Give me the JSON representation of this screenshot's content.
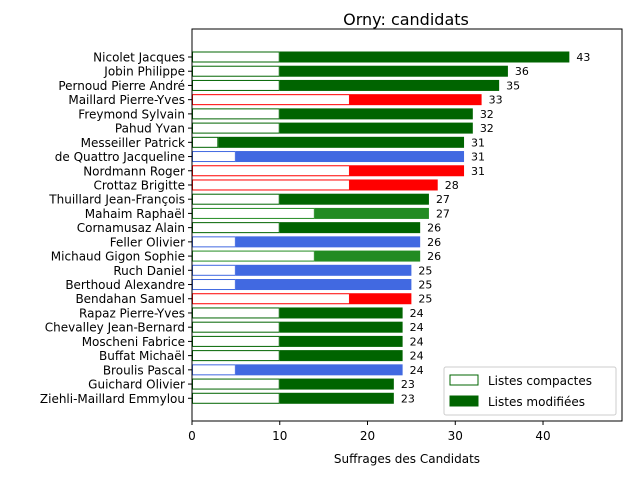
{
  "chart_data": {
    "type": "bar",
    "orientation": "horizontal",
    "stacked": true,
    "title": "Orny: candidats",
    "xlabel": "Suffrages des Candidats",
    "ylabel": "",
    "xlim": [
      0,
      49
    ],
    "xticks": [
      0,
      10,
      20,
      30,
      40
    ],
    "grid": false,
    "legend": {
      "placement": "bottom-right",
      "entries": [
        {
          "label": "Listes compactes",
          "style": "outline",
          "color": "#006400"
        },
        {
          "label": "Listes modifiées",
          "style": "filled",
          "color": "#006400"
        }
      ]
    },
    "colors": {
      "dark_green": "#006400",
      "red": "#ff0000",
      "blue": "#4169e1",
      "green": "#228b22"
    },
    "candidates": [
      {
        "name": "Nicolet Jacques",
        "compactes": 10,
        "total": 43,
        "color": "#006400"
      },
      {
        "name": "Jobin Philippe",
        "compactes": 10,
        "total": 36,
        "color": "#006400"
      },
      {
        "name": "Pernoud Pierre André",
        "compactes": 10,
        "total": 35,
        "color": "#006400"
      },
      {
        "name": "Maillard Pierre-Yves",
        "compactes": 18,
        "total": 33,
        "color": "#ff0000"
      },
      {
        "name": "Freymond Sylvain",
        "compactes": 10,
        "total": 32,
        "color": "#006400"
      },
      {
        "name": "Pahud Yvan",
        "compactes": 10,
        "total": 32,
        "color": "#006400"
      },
      {
        "name": "Messeiller Patrick",
        "compactes": 3,
        "total": 31,
        "color": "#006400"
      },
      {
        "name": "de Quattro Jacqueline",
        "compactes": 5,
        "total": 31,
        "color": "#4169e1"
      },
      {
        "name": "Nordmann Roger",
        "compactes": 18,
        "total": 31,
        "color": "#ff0000"
      },
      {
        "name": "Crottaz Brigitte",
        "compactes": 18,
        "total": 28,
        "color": "#ff0000"
      },
      {
        "name": "Thuillard Jean-François",
        "compactes": 10,
        "total": 27,
        "color": "#006400"
      },
      {
        "name": "Mahaim Raphaël",
        "compactes": 14,
        "total": 27,
        "color": "#228b22"
      },
      {
        "name": "Cornamusaz Alain",
        "compactes": 10,
        "total": 26,
        "color": "#006400"
      },
      {
        "name": "Feller Olivier",
        "compactes": 5,
        "total": 26,
        "color": "#4169e1"
      },
      {
        "name": "Michaud Gigon Sophie",
        "compactes": 14,
        "total": 26,
        "color": "#228b22"
      },
      {
        "name": "Ruch Daniel",
        "compactes": 5,
        "total": 25,
        "color": "#4169e1"
      },
      {
        "name": "Berthoud Alexandre",
        "compactes": 5,
        "total": 25,
        "color": "#4169e1"
      },
      {
        "name": "Bendahan Samuel",
        "compactes": 18,
        "total": 25,
        "color": "#ff0000"
      },
      {
        "name": "Rapaz Pierre-Yves",
        "compactes": 10,
        "total": 24,
        "color": "#006400"
      },
      {
        "name": "Chevalley Jean-Bernard",
        "compactes": 10,
        "total": 24,
        "color": "#006400"
      },
      {
        "name": "Moscheni Fabrice",
        "compactes": 10,
        "total": 24,
        "color": "#006400"
      },
      {
        "name": "Buffat Michaël",
        "compactes": 10,
        "total": 24,
        "color": "#006400"
      },
      {
        "name": "Broulis Pascal",
        "compactes": 5,
        "total": 24,
        "color": "#4169e1"
      },
      {
        "name": "Guichard Olivier",
        "compactes": 10,
        "total": 23,
        "color": "#006400"
      },
      {
        "name": "Ziehli-Maillard Emmylou",
        "compactes": 10,
        "total": 23,
        "color": "#006400"
      }
    ]
  }
}
